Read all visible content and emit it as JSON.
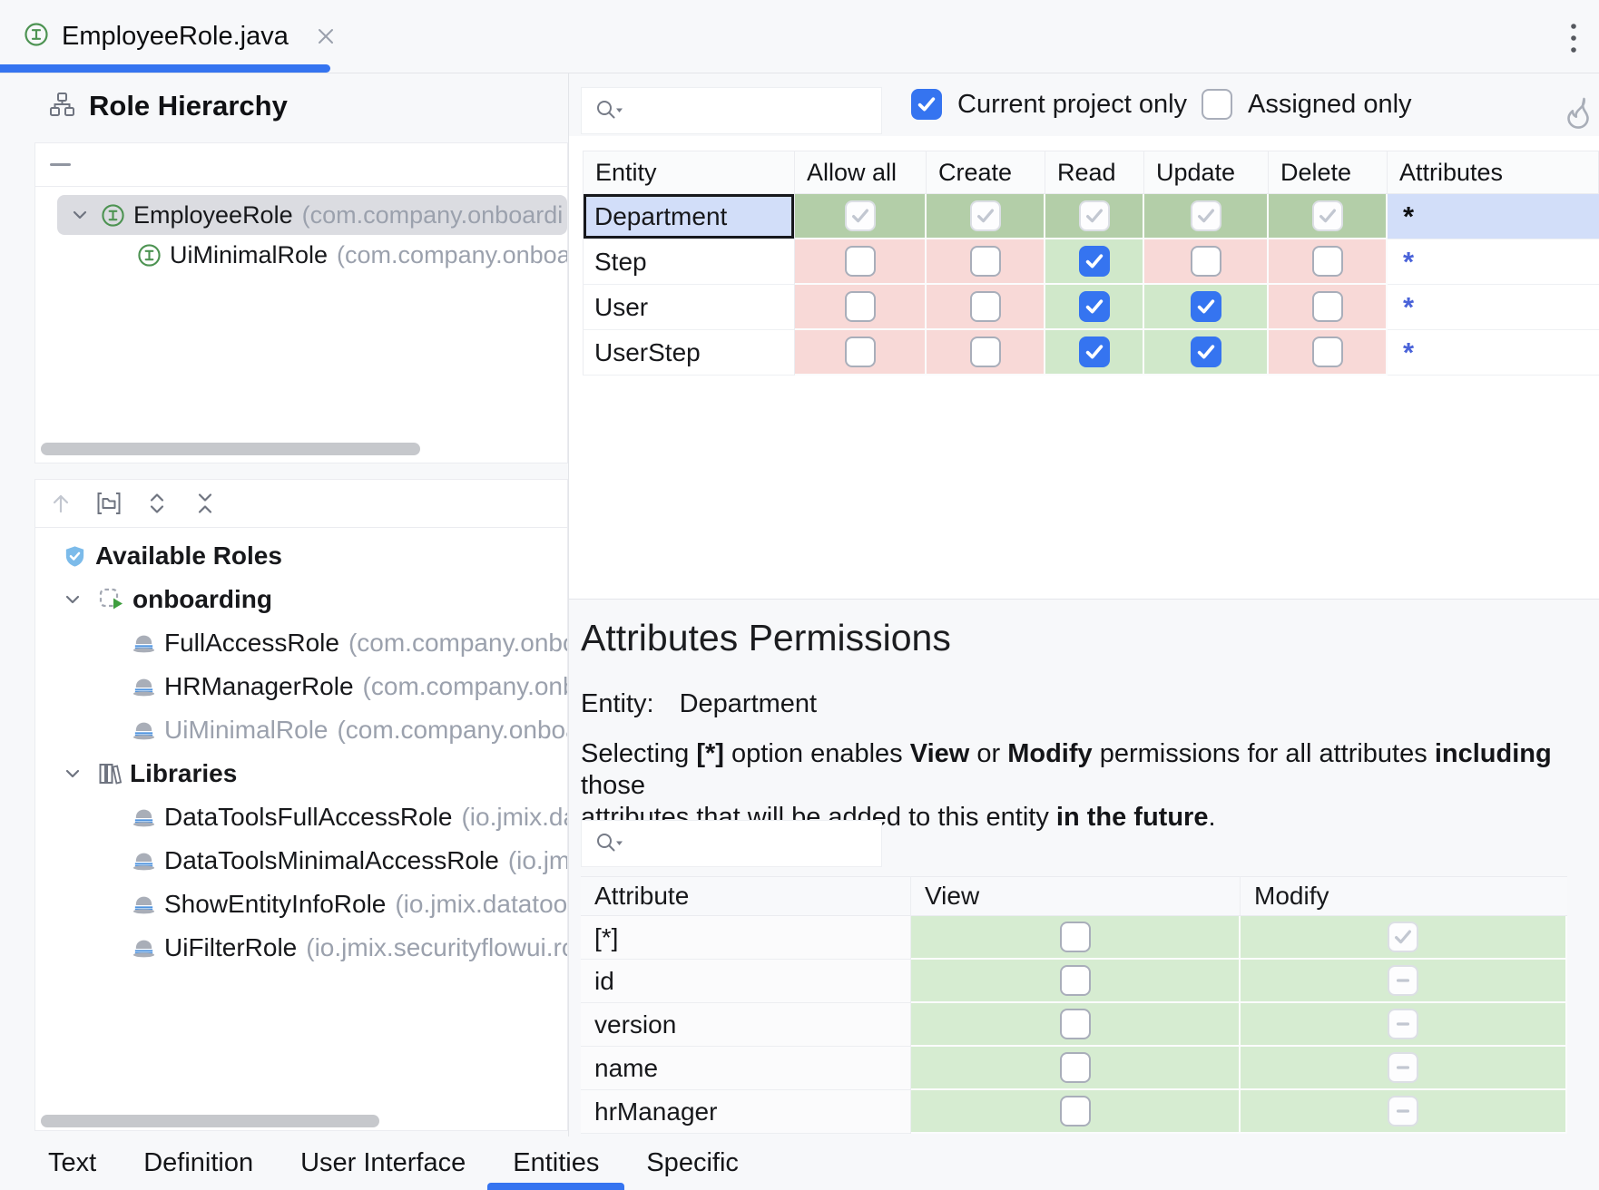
{
  "tab_bar": {
    "title": "EmployeeRole.java"
  },
  "left_panel": {
    "title": "Role Hierarchy",
    "hierarchy": [
      {
        "label": "EmployeeRole",
        "package": "(com.company.onboardi",
        "level": 0,
        "selected": true,
        "expanded": true
      },
      {
        "label": "UiMinimalRole",
        "package": "(com.company.onboa",
        "level": 1,
        "selected": false
      }
    ],
    "available_roles": {
      "title": "Available Roles",
      "groups": [
        {
          "label": "onboarding",
          "icon": "module-icon",
          "items": [
            {
              "label": "FullAccessRole",
              "package": "(com.company.onbo",
              "disabled": false
            },
            {
              "label": "HRManagerRole",
              "package": "(com.company.onb",
              "disabled": false
            },
            {
              "label": "UiMinimalRole",
              "package": "(com.company.onboa",
              "disabled": true
            }
          ]
        },
        {
          "label": "Libraries",
          "icon": "libraries-icon",
          "items": [
            {
              "label": "DataToolsFullAccessRole",
              "package": "(io.jmix.da",
              "disabled": false
            },
            {
              "label": "DataToolsMinimalAccessRole",
              "package": "(io.jmi",
              "disabled": false
            },
            {
              "label": "ShowEntityInfoRole",
              "package": "(io.jmix.datatool",
              "disabled": false
            },
            {
              "label": "UiFilterRole",
              "package": "(io.jmix.securityflowui.ro",
              "disabled": false
            }
          ]
        }
      ]
    }
  },
  "toolbar": {
    "search_value": "",
    "filters": [
      {
        "label": "Current project only",
        "checked": true
      },
      {
        "label": "Assigned only",
        "checked": false
      }
    ]
  },
  "entity_table": {
    "columns": [
      "Entity",
      "Allow all",
      "Create",
      "Read",
      "Update",
      "Delete",
      "Attributes"
    ],
    "rows": [
      {
        "entity": "Department",
        "selected": true,
        "permissions": [
          "granted-all",
          "granted-all",
          "granted-all",
          "granted-all",
          "granted-all"
        ],
        "attributes": "*"
      },
      {
        "entity": "Step",
        "selected": false,
        "permissions": [
          "denied",
          "denied",
          "granted",
          "denied",
          "denied"
        ],
        "attributes": "*"
      },
      {
        "entity": "User",
        "selected": false,
        "permissions": [
          "denied",
          "denied",
          "granted",
          "granted",
          "denied"
        ],
        "attributes": "*"
      },
      {
        "entity": "UserStep",
        "selected": false,
        "permissions": [
          "denied",
          "denied",
          "granted",
          "granted",
          "denied"
        ],
        "attributes": "*"
      }
    ]
  },
  "attributes_section": {
    "title": "Attributes Permissions",
    "entity_label": "Entity:",
    "entity_value": "Department",
    "search_value": "",
    "description_lines": [
      [
        {
          "text": "Selecting "
        },
        {
          "text": "[*]",
          "bold": true
        },
        {
          "text": " option enables "
        },
        {
          "text": "View",
          "bold": true
        },
        {
          "text": " or "
        },
        {
          "text": "Modify",
          "bold": true
        },
        {
          "text": " permissions for all attributes "
        },
        {
          "text": "including",
          "bold": true
        },
        {
          "text": " those"
        }
      ],
      [
        {
          "text": "attributes that will be added to this entity "
        },
        {
          "text": "in the future",
          "bold": true
        },
        {
          "text": "."
        }
      ]
    ],
    "table": {
      "columns": [
        "Attribute",
        "View",
        "Modify"
      ],
      "rows": [
        {
          "attribute": "[*]",
          "view": "unchecked",
          "modify": "checked-disabled"
        },
        {
          "attribute": "id",
          "view": "unchecked",
          "modify": "indeterminate"
        },
        {
          "attribute": "version",
          "view": "unchecked",
          "modify": "indeterminate"
        },
        {
          "attribute": "name",
          "view": "unchecked",
          "modify": "indeterminate"
        },
        {
          "attribute": "hrManager",
          "view": "unchecked",
          "modify": "indeterminate"
        }
      ]
    }
  },
  "bottom_tabs": {
    "tabs": [
      {
        "label": "Text",
        "active": false
      },
      {
        "label": "Definition",
        "active": false
      },
      {
        "label": "User Interface",
        "active": false
      },
      {
        "label": "Entities",
        "active": true
      },
      {
        "label": "Specific",
        "active": false
      }
    ]
  },
  "colors": {
    "accent_blue": "#3574F0",
    "granted_green": "#D0E8CA",
    "granted_all_green": "#B3CEA8",
    "denied_pink": "#F8D9D7",
    "selection_blue": "#D2DEF9",
    "attr_table_green": "#D6ECD1"
  }
}
